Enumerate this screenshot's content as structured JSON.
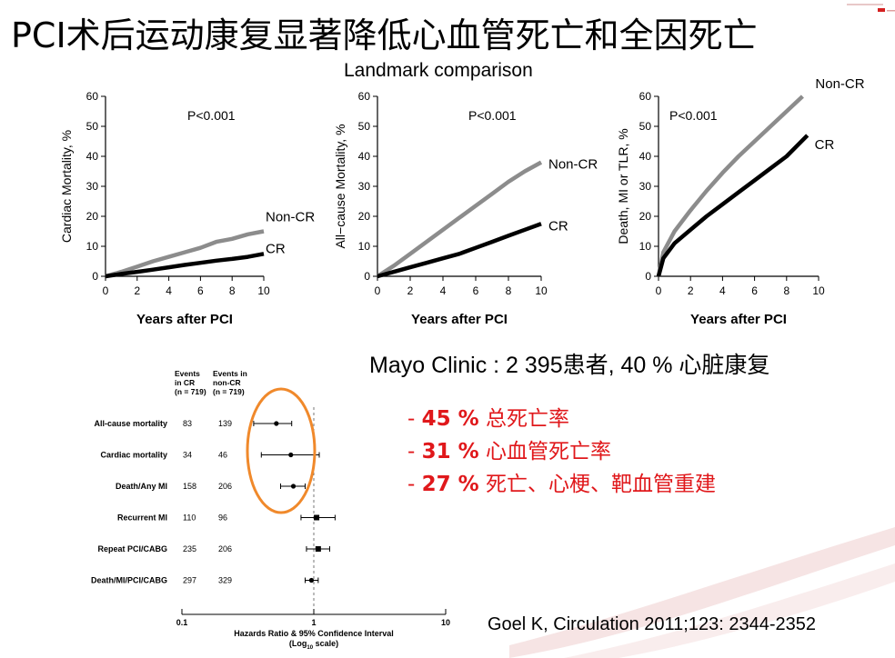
{
  "title": "PCI术后运动康复显著降低心血管死亡和全因死亡",
  "subtitle": "Landmark comparison",
  "colors": {
    "cr": "#000000",
    "noncr": "#8c8c8c",
    "accent_red": "#e0181b",
    "oval": "#f0892b"
  },
  "chart_data": [
    {
      "type": "line",
      "ylabel": "Cardiac Mortality, %",
      "xlabel": "Years after PCI",
      "xlim": [
        0,
        10
      ],
      "ylim": [
        0,
        60
      ],
      "xticks": [
        "0",
        "2",
        "4",
        "6",
        "8",
        "10"
      ],
      "yticks": [
        "0",
        "10",
        "20",
        "30",
        "40",
        "50",
        "60"
      ],
      "annotation": "P<0.001",
      "series": [
        {
          "name": "Non-CR",
          "label": "Non-CR",
          "x": [
            0,
            1,
            2,
            3,
            4,
            5,
            6,
            7,
            8,
            9,
            10
          ],
          "y": [
            0,
            1.5,
            3.2,
            5,
            6.5,
            8,
            9.5,
            11.5,
            12.5,
            14,
            15
          ]
        },
        {
          "name": "CR",
          "label": "CR",
          "x": [
            0,
            1,
            2,
            3,
            4,
            5,
            6,
            7,
            8,
            9,
            10
          ],
          "y": [
            0,
            0.8,
            1.5,
            2.2,
            3,
            3.8,
            4.5,
            5.2,
            5.8,
            6.5,
            7.5
          ]
        }
      ]
    },
    {
      "type": "line",
      "ylabel": "All−cause Mortality, %",
      "xlabel": "Years after PCI",
      "xlim": [
        0,
        10
      ],
      "ylim": [
        0,
        60
      ],
      "xticks": [
        "0",
        "2",
        "4",
        "6",
        "8",
        "10"
      ],
      "yticks": [
        "0",
        "10",
        "20",
        "30",
        "40",
        "50",
        "60"
      ],
      "annotation": "P<0.001",
      "series": [
        {
          "name": "Non-CR",
          "label": "Non-CR",
          "x": [
            0,
            1,
            2,
            3,
            4,
            5,
            6,
            7,
            8,
            9,
            10
          ],
          "y": [
            0,
            3.5,
            7.5,
            11.5,
            15.5,
            19.5,
            23.5,
            27.5,
            31.5,
            35,
            38
          ]
        },
        {
          "name": "CR",
          "label": "CR",
          "x": [
            0,
            1,
            2,
            3,
            4,
            5,
            6,
            7,
            8,
            9,
            10
          ],
          "y": [
            0,
            1.5,
            3,
            4.5,
            6,
            7.5,
            9.5,
            11.5,
            13.5,
            15.5,
            17.5
          ]
        }
      ]
    },
    {
      "type": "line",
      "ylabel": "Death, MI or TLR, %",
      "xlabel": "Years after PCI",
      "xlim": [
        0,
        10
      ],
      "ylim": [
        0,
        60
      ],
      "xticks": [
        "0",
        "2",
        "4",
        "6",
        "8",
        "10"
      ],
      "yticks": [
        "0",
        "10",
        "20",
        "30",
        "40",
        "50",
        "60"
      ],
      "annotation": "P<0.001",
      "series": [
        {
          "name": "Non-CR",
          "label": "Non-CR",
          "x": [
            0,
            0.3,
            1,
            2,
            3,
            4,
            5,
            6,
            7,
            8,
            9
          ],
          "y": [
            0,
            8,
            15,
            22,
            28.5,
            34.5,
            40,
            45,
            50,
            55,
            60
          ]
        },
        {
          "name": "CR",
          "label": "CR",
          "x": [
            0,
            0.3,
            1,
            2,
            3,
            4,
            5,
            6,
            7,
            8,
            9.3
          ],
          "y": [
            0,
            6,
            11,
            15.5,
            20,
            24,
            28,
            32,
            36,
            40,
            47
          ]
        }
      ]
    },
    {
      "type": "forest",
      "xlabel": "Hazards Ratio & 95% Confidence Interval",
      "xlabel2": "(Log",
      "xlabel2_sub": "10",
      "xlabel2_end": " scale)",
      "xlim": [
        0.1,
        10
      ],
      "xticks": [
        "0.1",
        "1",
        "10"
      ],
      "col_cr_header": [
        "Events",
        "in CR",
        "(n = 719)"
      ],
      "col_noncr_header": [
        "Events in",
        "non-CR",
        "(n = 719)"
      ],
      "rows": [
        {
          "label": "All-cause mortality",
          "cr": "83",
          "noncr": "139",
          "hr": 0.52,
          "lo": 0.35,
          "hi": 0.68
        },
        {
          "label": "Cardiac mortality",
          "cr": "34",
          "noncr": "46",
          "hr": 0.67,
          "lo": 0.4,
          "hi": 1.1
        },
        {
          "label": "Death/Any MI",
          "cr": "158",
          "noncr": "206",
          "hr": 0.7,
          "lo": 0.56,
          "hi": 0.86
        },
        {
          "label": "Recurrent MI",
          "cr": "110",
          "noncr": "96",
          "hr": 1.05,
          "lo": 0.8,
          "hi": 1.45
        },
        {
          "label": "Repeat PCI/CABG",
          "cr": "235",
          "noncr": "206",
          "hr": 1.08,
          "lo": 0.88,
          "hi": 1.32
        },
        {
          "label": "Death/MI/PCI/CABG",
          "cr": "297",
          "noncr": "329",
          "hr": 0.96,
          "lo": 0.86,
          "hi": 1.08
        }
      ]
    }
  ],
  "mayo": "Mayo Clinic : 2 395患者, 40 % 心脏康复",
  "bullets": [
    {
      "dash": "- ",
      "pct": "45 %",
      "text": " 总死亡率"
    },
    {
      "dash": "- ",
      "pct": "31 %",
      "text": " 心血管死亡率"
    },
    {
      "dash": "- ",
      "pct": "27 %",
      "text": " 死亡、心梗、靶血管重建"
    }
  ],
  "citation": "Goel K, Circulation 2011;123: 2344-2352"
}
